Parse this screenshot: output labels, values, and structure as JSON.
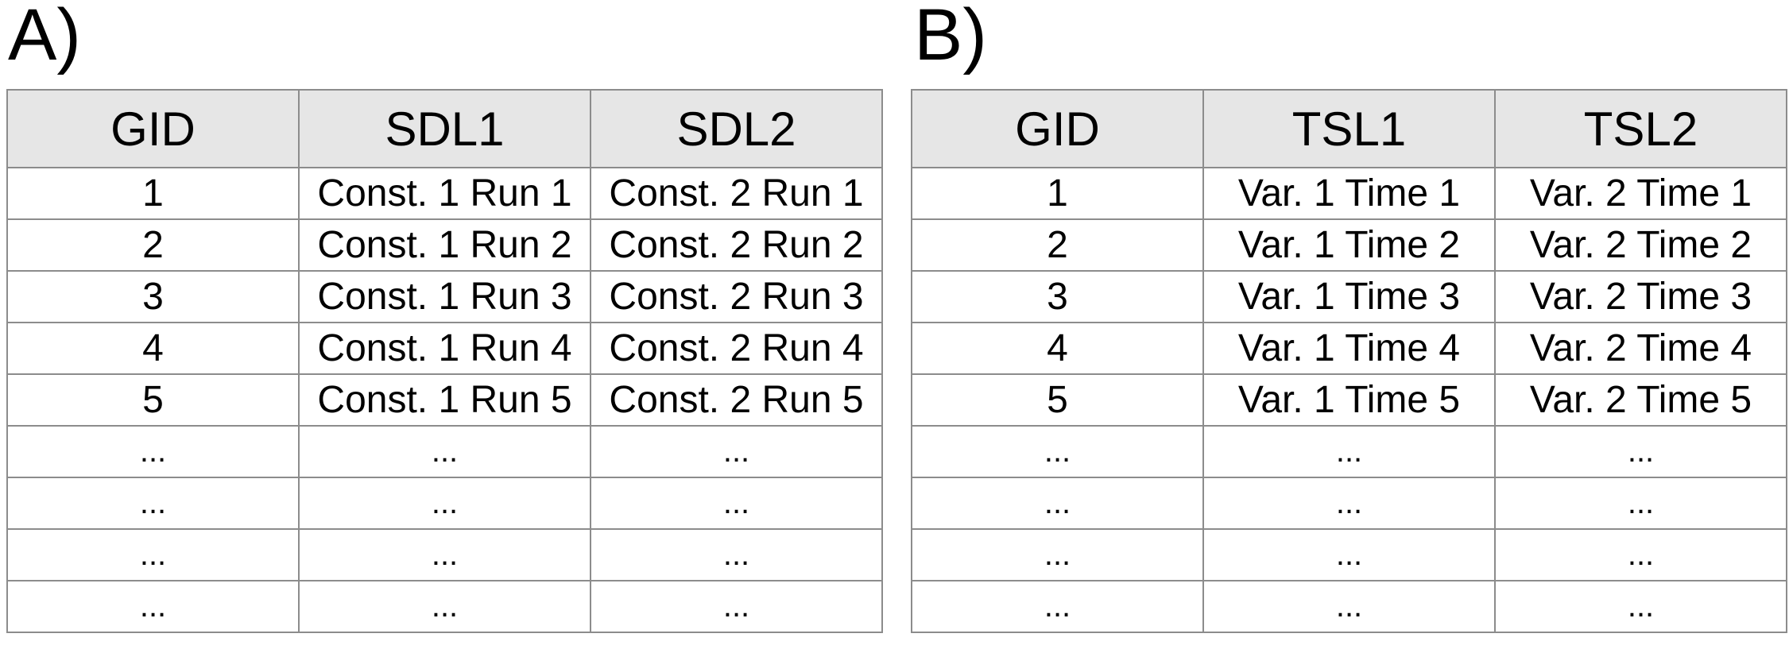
{
  "panels": [
    {
      "label": "A)",
      "headers": [
        "GID",
        "SDL1",
        "SDL2"
      ],
      "rows": [
        [
          "1",
          "Const. 1 Run 1",
          "Const. 2 Run 1"
        ],
        [
          "2",
          "Const. 1 Run 2",
          "Const. 2 Run 2"
        ],
        [
          "3",
          "Const. 1 Run 3",
          "Const. 2 Run 3"
        ],
        [
          "4",
          "Const. 1 Run 4",
          "Const. 2 Run 4"
        ],
        [
          "5",
          "Const. 1 Run 5",
          "Const. 2 Run 5"
        ],
        [
          "...",
          "...",
          "..."
        ],
        [
          "...",
          "...",
          "..."
        ],
        [
          "...",
          "...",
          "..."
        ],
        [
          "...",
          "...",
          "..."
        ]
      ]
    },
    {
      "label": "B)",
      "headers": [
        "GID",
        "TSL1",
        "TSL2"
      ],
      "rows": [
        [
          "1",
          "Var. 1 Time 1",
          "Var. 2 Time 1"
        ],
        [
          "2",
          "Var. 1 Time 2",
          "Var. 2 Time 2"
        ],
        [
          "3",
          "Var. 1 Time 3",
          "Var. 2 Time 3"
        ],
        [
          "4",
          "Var. 1 Time 4",
          "Var. 2 Time 4"
        ],
        [
          "5",
          "Var. 1 Time 5",
          "Var. 2 Time 5"
        ],
        [
          "...",
          "...",
          "..."
        ],
        [
          "...",
          "...",
          "..."
        ],
        [
          "...",
          "...",
          "..."
        ],
        [
          "...",
          "...",
          "..."
        ]
      ]
    }
  ],
  "colors": {
    "header_background": "#e6e6e6",
    "grid_line": "#8c8c8c",
    "text": "#000000"
  }
}
